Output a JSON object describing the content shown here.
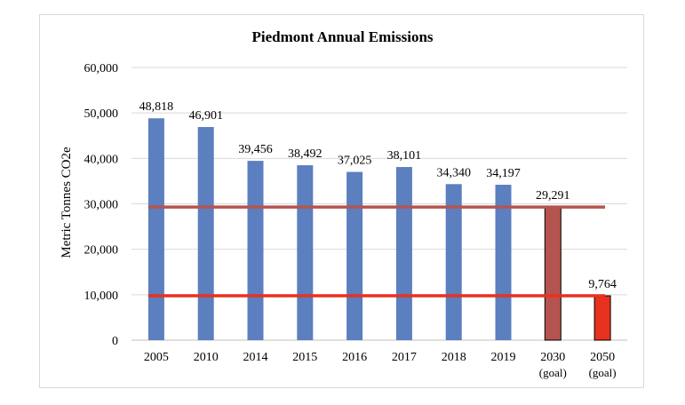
{
  "chart_data": {
    "type": "bar",
    "title": "Piedmont Annual Emissions",
    "ylabel": "Metric Tonnes CO2e",
    "xlabel": "",
    "ylim": [
      0,
      60000
    ],
    "yticks": [
      0,
      10000,
      20000,
      30000,
      40000,
      50000,
      60000
    ],
    "ytick_labels": [
      "0",
      "10,000",
      "20,000",
      "30,000",
      "40,000",
      "50,000",
      "60,000"
    ],
    "grid": true,
    "categories": [
      {
        "line1": "2005",
        "line2": ""
      },
      {
        "line1": "2010",
        "line2": ""
      },
      {
        "line1": "2014",
        "line2": ""
      },
      {
        "line1": "2015",
        "line2": ""
      },
      {
        "line1": "2016",
        "line2": ""
      },
      {
        "line1": "2017",
        "line2": ""
      },
      {
        "line1": "2018",
        "line2": ""
      },
      {
        "line1": "2019",
        "line2": ""
      },
      {
        "line1": "2030",
        "line2": "(goal)"
      },
      {
        "line1": "2050",
        "line2": "(goal)"
      }
    ],
    "values": [
      48818,
      46901,
      39456,
      38492,
      37025,
      38101,
      34340,
      34197,
      29291,
      9764
    ],
    "value_labels": [
      "48,818",
      "46,901",
      "39,456",
      "38,492",
      "37,025",
      "38,101",
      "34,340",
      "34,197",
      "29,291",
      "9,764"
    ],
    "bar_colors": [
      "#5b7fbf",
      "#5b7fbf",
      "#5b7fbf",
      "#5b7fbf",
      "#5b7fbf",
      "#5b7fbf",
      "#5b7fbf",
      "#5b7fbf",
      "#b5544f",
      "#e8311f"
    ],
    "reference_lines": [
      {
        "value": 29291,
        "color": "#b5544f"
      },
      {
        "value": 9764,
        "color": "#e8311f"
      }
    ]
  }
}
